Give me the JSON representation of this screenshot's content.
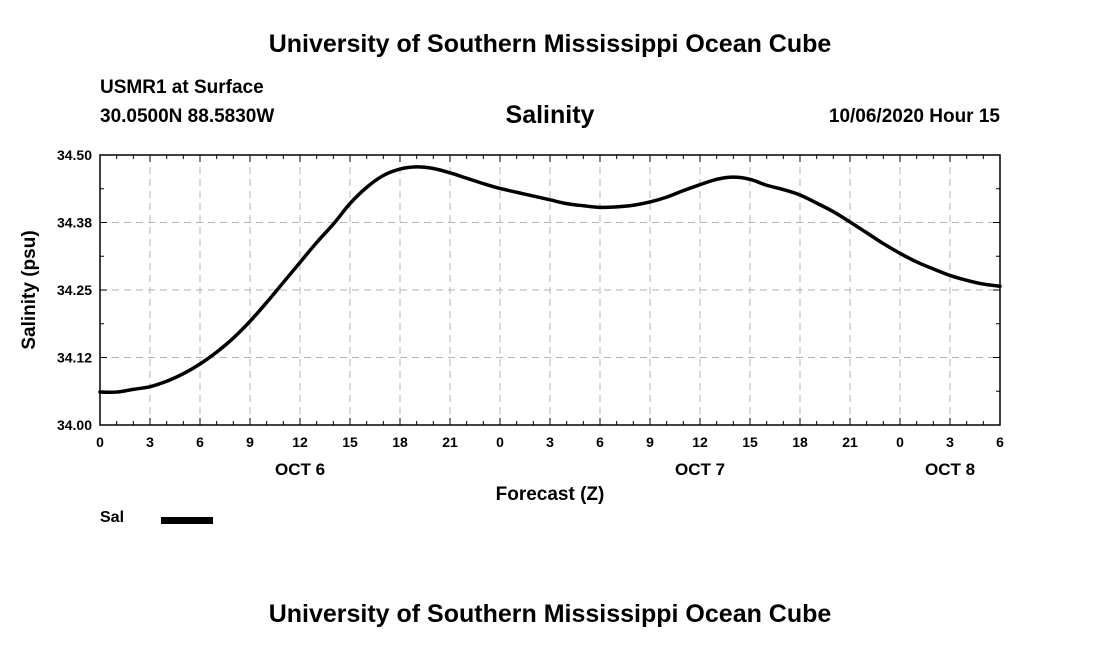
{
  "header": {
    "banner": "University of Southern Mississippi Ocean Cube",
    "station": "USMR1 at Surface",
    "coords": "30.0500N 88.5830W",
    "timestamp": "10/06/2020 Hour 15"
  },
  "footer": {
    "banner": "University of Southern Mississippi Ocean Cube"
  },
  "legend": {
    "label": "Sal"
  },
  "chart_data": {
    "type": "line",
    "title": "Salinity",
    "xlabel": "Forecast (Z)",
    "ylabel": "Salinity (psu)",
    "xlim": [
      0,
      54
    ],
    "ylim": [
      34.0,
      34.5
    ],
    "yticks": [
      "34.00",
      "34.12",
      "34.25",
      "34.38",
      "34.50"
    ],
    "xticks": [
      "0",
      "3",
      "6",
      "9",
      "12",
      "15",
      "18",
      "21",
      "0",
      "3",
      "6",
      "9",
      "12",
      "15",
      "18",
      "21",
      "0",
      "3",
      "6"
    ],
    "date_labels": [
      {
        "label": "OCT 6",
        "hour": 12
      },
      {
        "label": "OCT 7",
        "hour": 36
      },
      {
        "label": "OCT 8",
        "hour": 51
      }
    ],
    "grid": true,
    "series": [
      {
        "name": "Sal",
        "color": "#000000",
        "x": [
          0,
          1,
          2,
          3,
          4,
          5,
          6,
          7,
          8,
          9,
          10,
          11,
          12,
          13,
          14,
          15,
          16,
          17,
          18,
          19,
          20,
          21,
          22,
          23,
          24,
          25,
          26,
          27,
          28,
          29,
          30,
          31,
          32,
          33,
          34,
          35,
          36,
          37,
          38,
          39,
          40,
          41,
          42,
          43,
          44,
          45,
          46,
          47,
          48,
          49,
          50,
          51,
          52,
          53,
          54
        ],
        "values": [
          34.061,
          34.061,
          34.066,
          34.071,
          34.081,
          34.095,
          34.113,
          34.135,
          34.161,
          34.192,
          34.227,
          34.264,
          34.301,
          34.338,
          34.372,
          34.41,
          34.44,
          34.462,
          34.474,
          34.478,
          34.475,
          34.467,
          34.457,
          34.447,
          34.438,
          34.431,
          34.424,
          34.417,
          34.41,
          34.406,
          34.403,
          34.404,
          34.407,
          34.413,
          34.422,
          34.434,
          34.445,
          34.455,
          34.459,
          34.455,
          34.444,
          34.436,
          34.426,
          34.411,
          34.395,
          34.376,
          34.356,
          34.336,
          34.318,
          34.302,
          34.289,
          34.277,
          34.268,
          34.261,
          34.257
        ]
      }
    ]
  }
}
